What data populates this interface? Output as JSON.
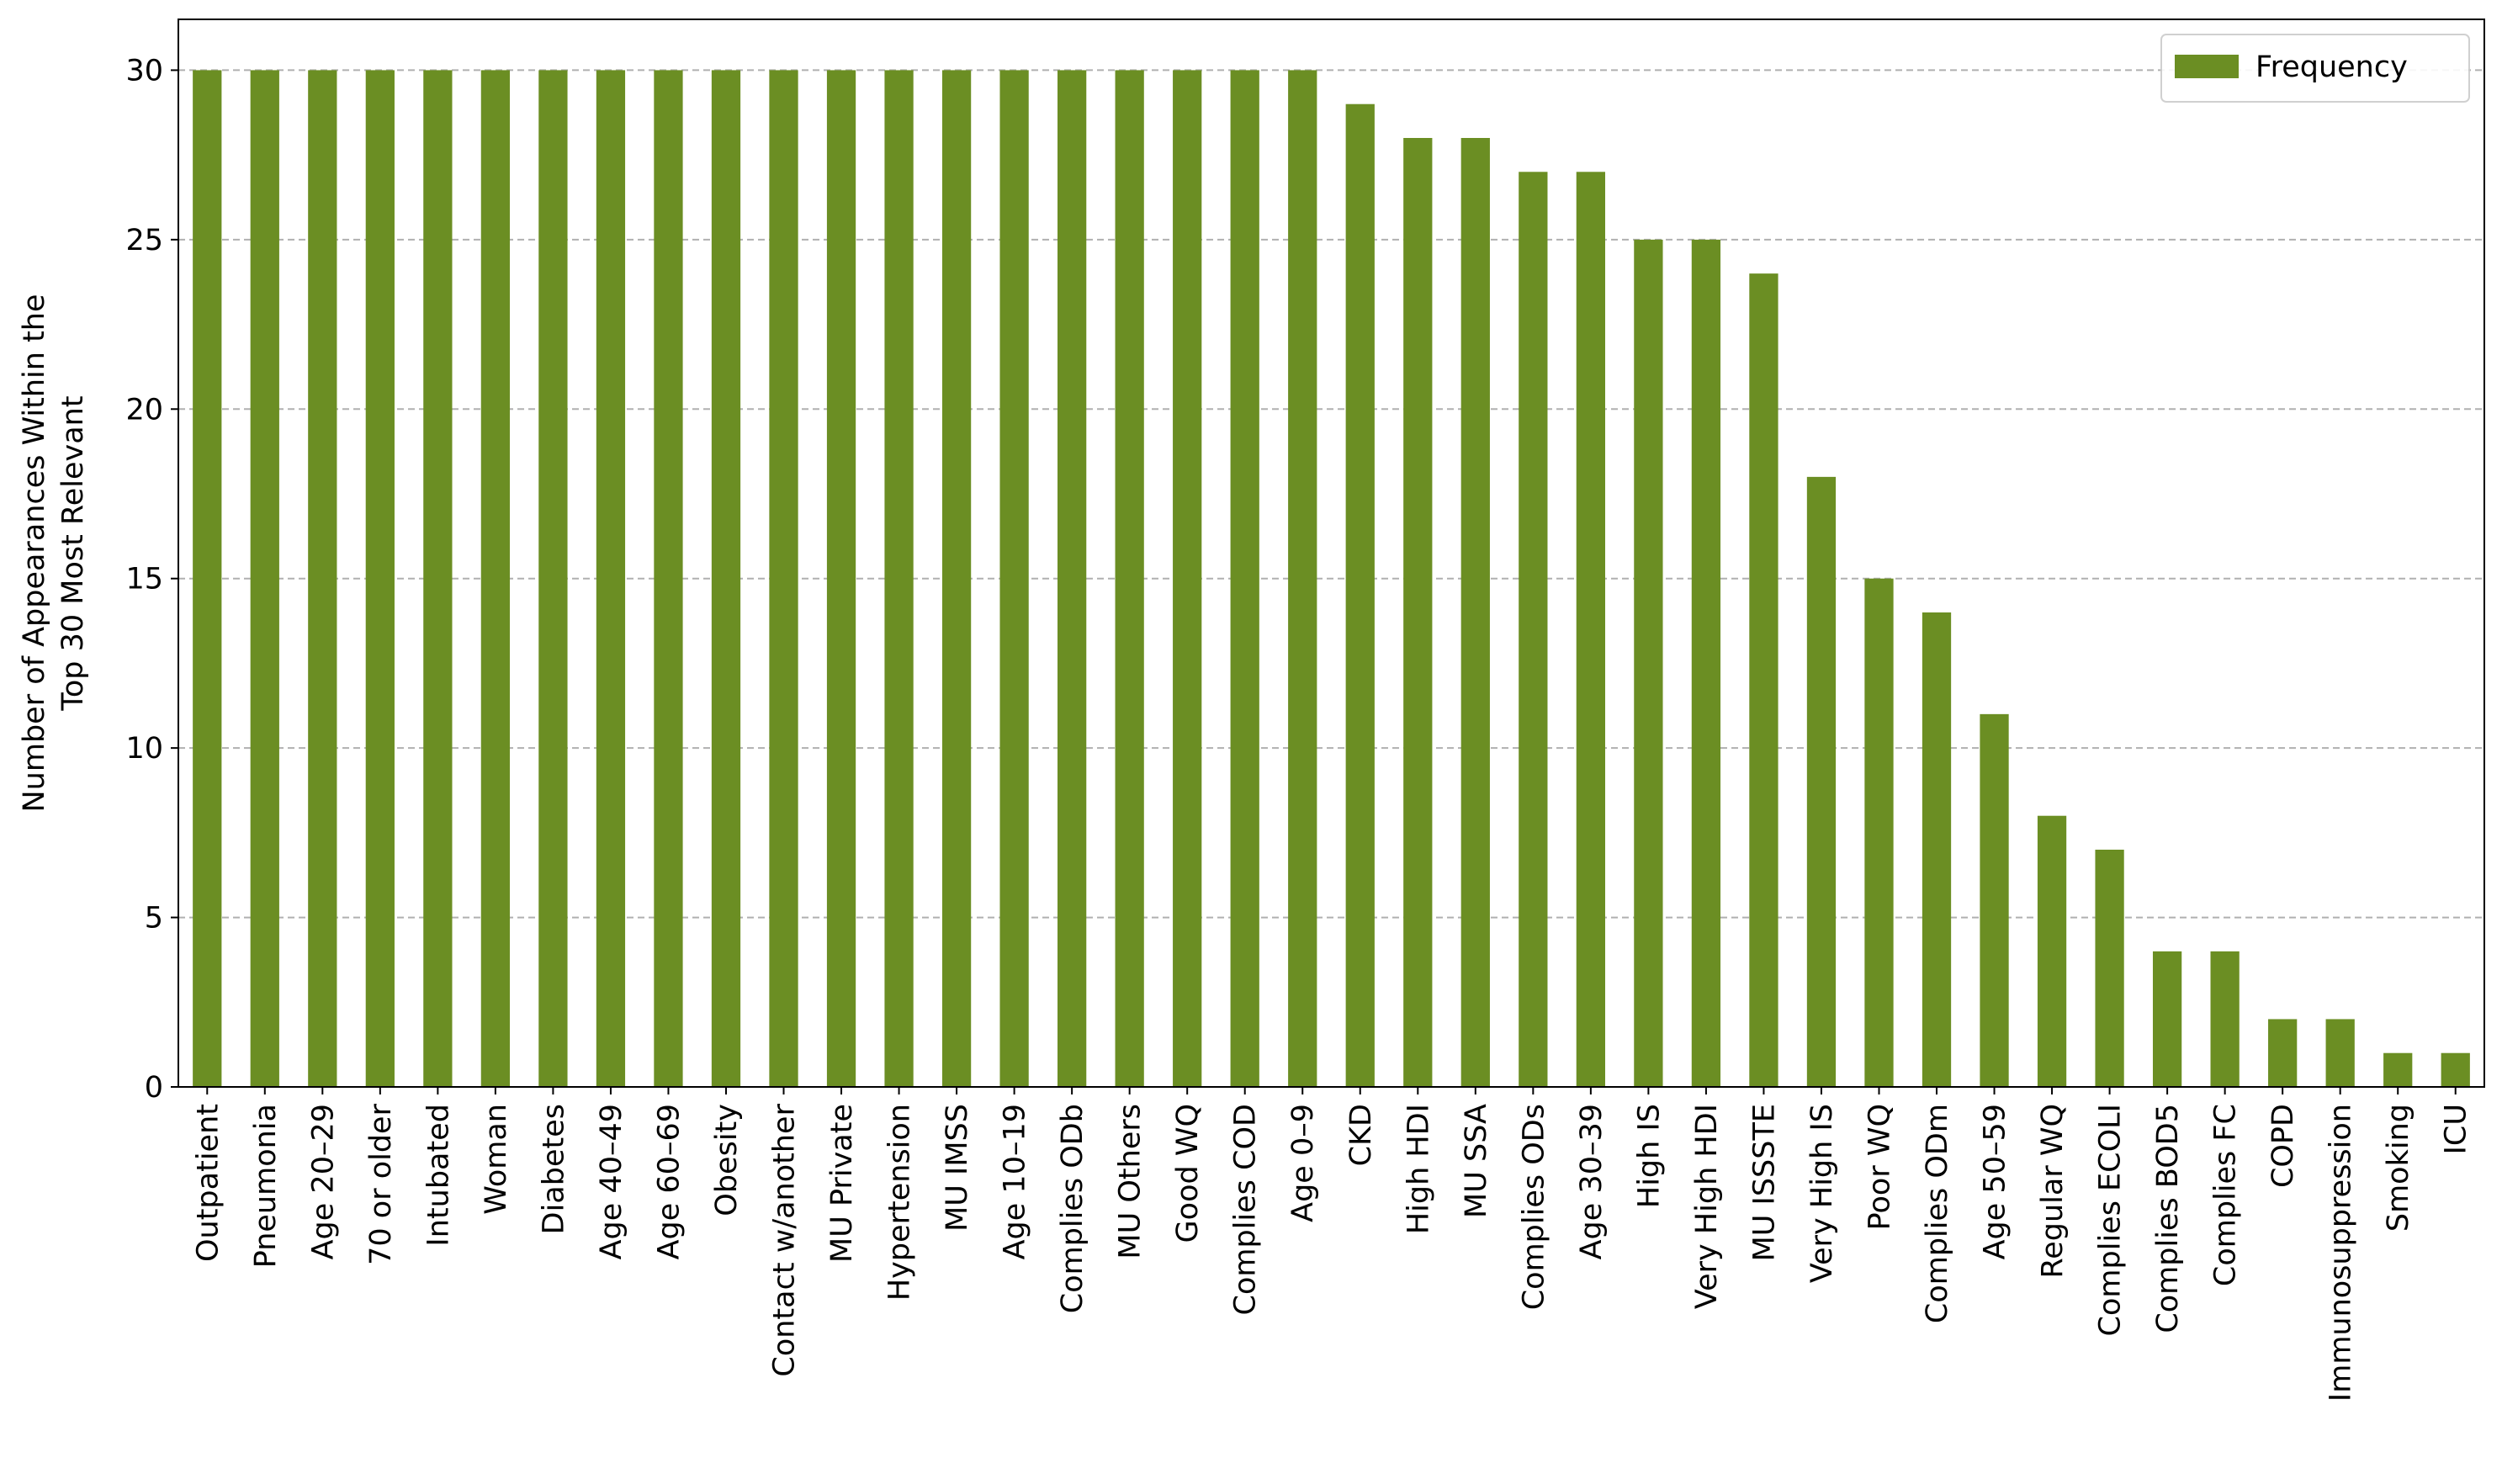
{
  "chart_data": {
    "type": "bar",
    "ylabel": [
      "Number of Appearances Within the",
      "Top 30 Most Relevant"
    ],
    "categories": [
      "Outpatient",
      "Pneumonia",
      "Age 20–29",
      "70 or older",
      "Intubated",
      "Woman",
      "Diabetes",
      "Age 40–49",
      "Age 60–69",
      "Obesity",
      "Contact w/another",
      "MU Private",
      "Hypertension",
      "MU IMSS",
      "Age 10–19",
      "Complies ODb",
      "MU Others",
      "Good WQ",
      "Complies COD",
      "Age 0–9",
      "CKD",
      "High HDI",
      "MU SSA",
      "Complies ODs",
      "Age 30–39",
      "High IS",
      "Very High HDI",
      "MU ISSSTE",
      "Very High IS",
      "Poor WQ",
      "Complies ODm",
      "Age 50–59",
      "Regular WQ",
      "Complies ECOLI",
      "Complies BOD5",
      "Complies FC",
      "COPD",
      "Immunosuppression",
      "Smoking",
      "ICU"
    ],
    "series": [
      {
        "name": "Frequency",
        "color": "#6b8e23",
        "values": [
          30,
          30,
          30,
          30,
          30,
          30,
          30,
          30,
          30,
          30,
          30,
          30,
          30,
          30,
          30,
          30,
          30,
          30,
          30,
          30,
          29,
          28,
          28,
          27,
          27,
          25,
          25,
          24,
          18,
          15,
          14,
          11,
          8,
          7,
          4,
          4,
          2,
          2,
          1,
          1
        ]
      }
    ],
    "ylim": [
      0,
      31.5
    ],
    "yticks": [
      0,
      5,
      10,
      15,
      20,
      25,
      30
    ],
    "grid": true,
    "legend": "upper right"
  }
}
